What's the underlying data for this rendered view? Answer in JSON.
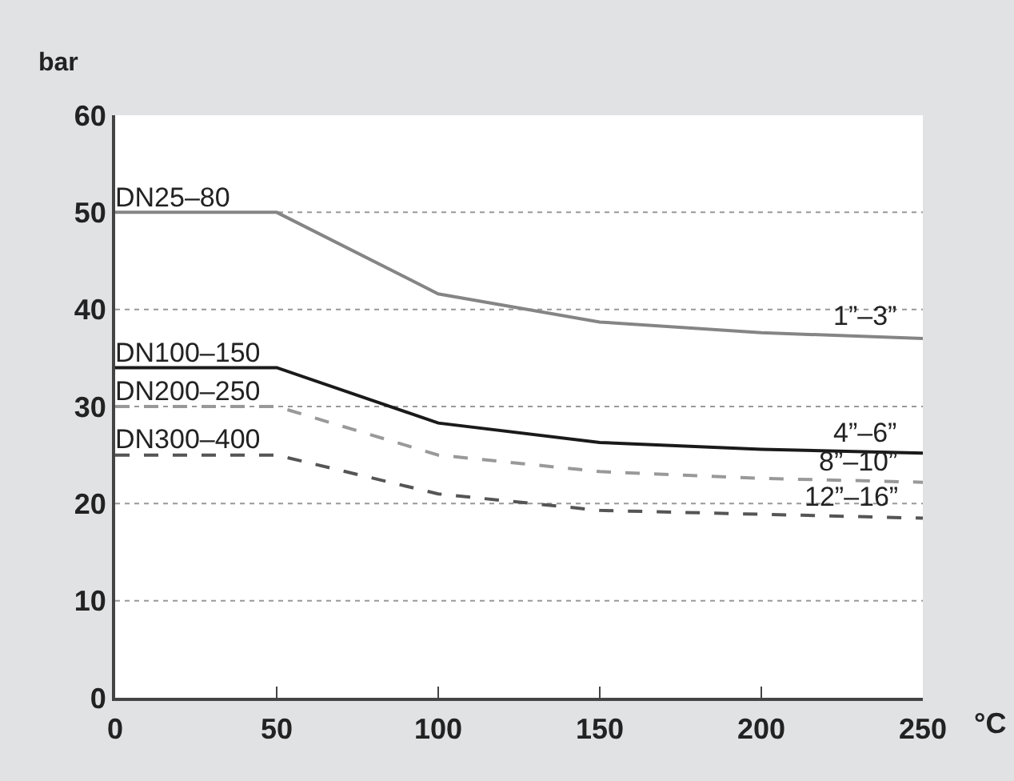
{
  "chart_data": {
    "type": "line",
    "ylabel": "bar",
    "xlabel": "°C",
    "x": [
      0,
      50,
      100,
      150,
      200,
      250
    ],
    "series": [
      {
        "name": "DN25–80",
        "color": "#858585",
        "line_style": "solid",
        "values": [
          50,
          50,
          41.6,
          38.7,
          37.6,
          37
        ]
      },
      {
        "name": "DN100–150",
        "color": "#1a1a1a",
        "line_style": "solid",
        "values": [
          34,
          34,
          28.3,
          26.3,
          25.6,
          25.2
        ]
      },
      {
        "name": "DN200–250",
        "color": "#999999",
        "line_style": "dashed",
        "values": [
          30,
          30,
          25,
          23.3,
          22.6,
          22.2
        ]
      },
      {
        "name": "DN300–400",
        "color": "#555555",
        "line_style": "dashed",
        "values": [
          25,
          25,
          21,
          19.3,
          18.9,
          18.5
        ]
      }
    ],
    "annotations": [
      {
        "text": "1”–3”",
        "x": 232,
        "y": 37.2
      },
      {
        "text": "4”–6”",
        "x": 232,
        "y": 25.3
      },
      {
        "text": "8”–10”",
        "x": 230,
        "y": 22.3
      },
      {
        "text": "12”–16”",
        "x": 228,
        "y": 18.6
      }
    ],
    "xlim": [
      0,
      250
    ],
    "xticks": [
      0,
      50,
      100,
      150,
      200,
      250
    ],
    "ylim": [
      0,
      60
    ],
    "yticks": [
      0,
      10,
      20,
      30,
      40,
      50,
      60
    ],
    "grid": "y",
    "legend": false,
    "marker": "none"
  }
}
